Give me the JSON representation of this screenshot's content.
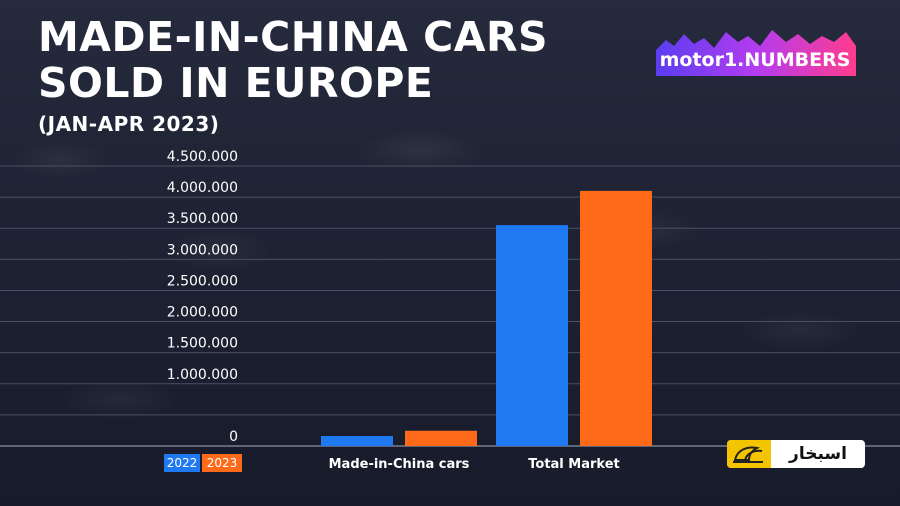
{
  "header": {
    "title_line1": "MADE-IN-CHINA CARS",
    "title_line2": "SOLD IN EUROPE",
    "subtitle": "(JAN-APR 2023)"
  },
  "logo": {
    "text": "motor1.NUMBERS"
  },
  "watermark": {
    "text": "اسبخار"
  },
  "chart_data": {
    "type": "bar",
    "title": "MADE-IN-CHINA CARS SOLD IN EUROPE",
    "subtitle": "(JAN-APR 2023)",
    "categories": [
      "Made-in-China cars",
      "Total Market"
    ],
    "series": [
      {
        "name": "2022",
        "color": "#1f7af2",
        "values": [
          160000,
          3550000
        ]
      },
      {
        "name": "2023",
        "color": "#ff6a1a",
        "values": [
          245000,
          4100000
        ]
      }
    ],
    "ylim": [
      0,
      4500000
    ],
    "yticks": [
      0,
      500000,
      1000000,
      1500000,
      2000000,
      2500000,
      3000000,
      3500000,
      4000000,
      4500000
    ],
    "ytick_labels": [
      "0",
      "",
      "1.000.000",
      "1.500.000",
      "2.000.000",
      "2.500.000",
      "3.000.000",
      "3.500.000",
      "4.000.000",
      "4.500.000"
    ],
    "legend_position": "bottom-left",
    "grid": true
  }
}
